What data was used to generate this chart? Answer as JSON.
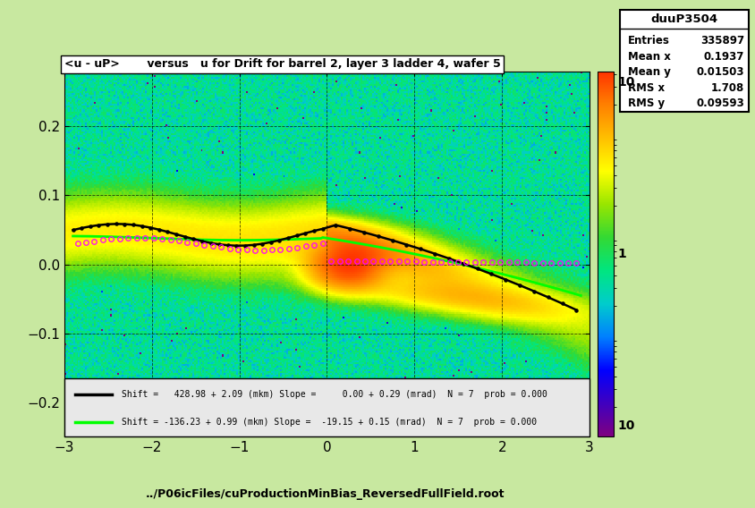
{
  "title": "<u - uP>       versus   u for Drift for barrel 2, layer 3 ladder 4, wafer 5",
  "xlabel": "../P06icFiles/cuProductionMinBias_ReversedFullField.root",
  "stats_title": "duuP3504",
  "stats": {
    "Entries": "335897",
    "Mean x": "0.1937",
    "Mean y": "0.01503",
    "RMS x": "1.708",
    "RMS y": "0.09593"
  },
  "xlim": [
    -3,
    3
  ],
  "ylim": [
    -0.25,
    0.28
  ],
  "legend_line1": "Shift =   428.98 + 2.09 (mkm) Slope =     0.00 + 0.29 (mrad)  N = 7  prob = 0.000",
  "legend_line2": "Shift = -136.23 + 0.99 (mkm) Slope =  -19.15 + 0.15 (mrad)  N = 7  prob = 0.000",
  "bg_color": "#c8e8a0"
}
